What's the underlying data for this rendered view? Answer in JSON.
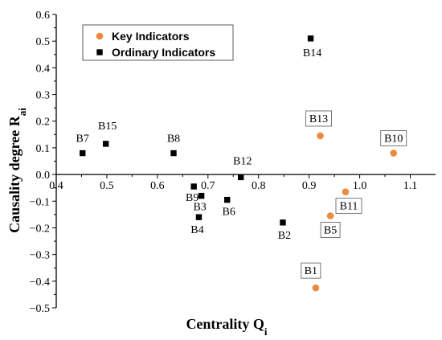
{
  "chart_data": {
    "type": "scatter",
    "title": "",
    "xlabel": "Centrality Q",
    "xlabel_sub": "i",
    "ylabel": "Causality degree R",
    "ylabel_sub": "ai",
    "xlim": [
      0.4,
      1.15
    ],
    "ylim": [
      -0.5,
      0.6
    ],
    "xticks": [
      0.4,
      0.5,
      0.6,
      0.7,
      0.8,
      0.9,
      1.0,
      1.1
    ],
    "xtick_labels": [
      "0.4",
      "0.5",
      "0.6",
      "0.7",
      "0.8",
      "0.9",
      "1.0",
      "1.1"
    ],
    "yticks": [
      -0.5,
      -0.4,
      -0.3,
      -0.2,
      -0.1,
      0.0,
      0.1,
      0.2,
      0.3,
      0.4,
      0.5,
      0.6
    ],
    "ytick_labels": [
      "-0.5",
      "-0.4",
      "-0.3",
      "-0.2",
      "-0.1",
      "0.0",
      "0.1",
      "0.2",
      "0.3",
      "0.4",
      "0.5",
      "0.6"
    ],
    "legend_position": "top-left",
    "series": [
      {
        "name": "Key Indicators",
        "color": "#ED8A3F",
        "marker": "circle",
        "points": [
          {
            "label": "B13",
            "x": 0.922,
            "y": 0.145
          },
          {
            "label": "B10",
            "x": 1.067,
            "y": 0.08
          },
          {
            "label": "B11",
            "x": 0.972,
            "y": -0.065
          },
          {
            "label": "B5",
            "x": 0.942,
            "y": -0.155
          },
          {
            "label": "B1",
            "x": 0.913,
            "y": -0.425
          }
        ]
      },
      {
        "name": "Ordinary Indicators",
        "color": "#000000",
        "marker": "square",
        "points": [
          {
            "label": "B7",
            "x": 0.452,
            "y": 0.08
          },
          {
            "label": "B15",
            "x": 0.498,
            "y": 0.115
          },
          {
            "label": "B8",
            "x": 0.632,
            "y": 0.08
          },
          {
            "label": "B14",
            "x": 0.903,
            "y": 0.51
          },
          {
            "label": "B12",
            "x": 0.765,
            "y": -0.01
          },
          {
            "label": "B9",
            "x": 0.672,
            "y": -0.045
          },
          {
            "label": "B3",
            "x": 0.687,
            "y": -0.08
          },
          {
            "label": "B6",
            "x": 0.738,
            "y": -0.095
          },
          {
            "label": "B4",
            "x": 0.682,
            "y": -0.16
          },
          {
            "label": "B2",
            "x": 0.848,
            "y": -0.18
          }
        ]
      }
    ]
  }
}
